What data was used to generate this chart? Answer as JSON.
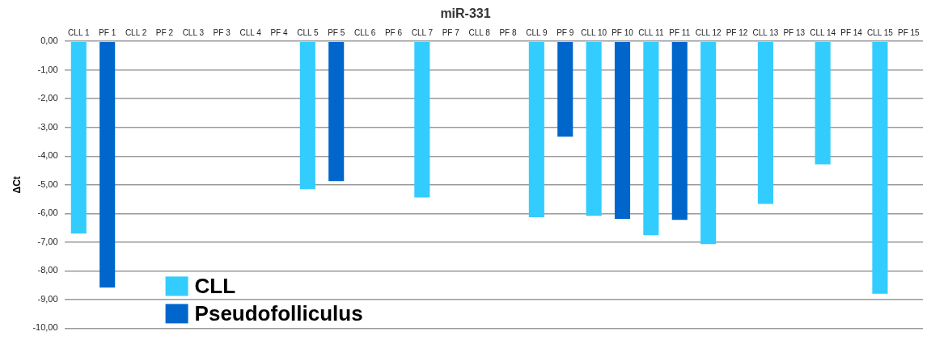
{
  "chart_data": {
    "type": "bar",
    "title": "miR-331",
    "ylabel": "ΔCt",
    "categories": [
      "CLL 1",
      "PF 1",
      "CLL 2",
      "PF 2",
      "CLL 3",
      "PF 3",
      "CLL 4",
      "PF 4",
      "CLL 5",
      "PF 5",
      "CLL 6",
      "PF 6",
      "CLL 7",
      "PF 7",
      "CLL 8",
      "PF 8",
      "CLL 9",
      "PF 9",
      "CLL 10",
      "PF 10",
      "CLL 11",
      "PF 11",
      "CLL 12",
      "PF 12",
      "CLL 13",
      "PF 13",
      "CLL 14",
      "PF 14",
      "CLL 15",
      "PF 15"
    ],
    "series": [
      {
        "name": "CLL",
        "color": "#33ccff",
        "values": [
          -6.7,
          null,
          null,
          null,
          null,
          null,
          null,
          null,
          -5.15,
          null,
          null,
          null,
          -5.44,
          null,
          null,
          null,
          -6.13,
          null,
          -6.08,
          null,
          -6.76,
          null,
          -7.07,
          null,
          -5.67,
          null,
          -4.29,
          null,
          -8.8,
          null
        ]
      },
      {
        "name": "Pseudofolliculus",
        "color": "#0066cc",
        "values": [
          null,
          -8.58,
          null,
          null,
          null,
          null,
          null,
          null,
          null,
          -4.87,
          null,
          null,
          null,
          null,
          null,
          null,
          null,
          -3.32,
          null,
          -6.19,
          null,
          -6.22,
          null,
          null,
          null,
          null,
          null,
          null,
          null,
          null
        ]
      }
    ],
    "ylim": [
      -10,
      0
    ],
    "yticks": [
      {
        "value": -10,
        "label": "-10,00"
      },
      {
        "value": -9,
        "label": "-9,00"
      },
      {
        "value": -8,
        "label": "-8,00"
      },
      {
        "value": -7,
        "label": "-7,00"
      },
      {
        "value": -6,
        "label": "-6,00"
      },
      {
        "value": -5,
        "label": "-5,00"
      },
      {
        "value": -4,
        "label": "-4,00"
      },
      {
        "value": -3,
        "label": "-3,00"
      },
      {
        "value": -2,
        "label": "-2,00"
      },
      {
        "value": -1,
        "label": "-1,00"
      },
      {
        "value": 0,
        "label": "0,00"
      }
    ],
    "grid": "y",
    "legend": "bottom left"
  }
}
